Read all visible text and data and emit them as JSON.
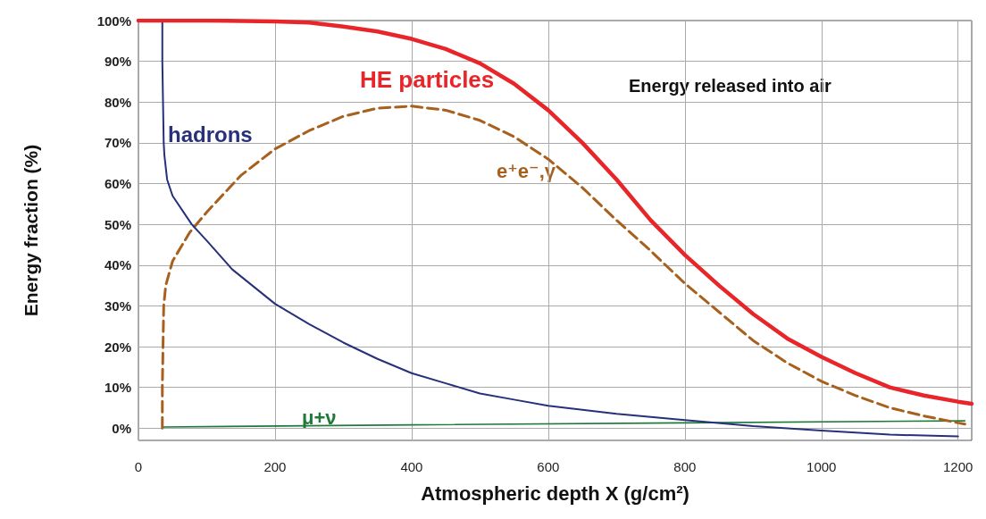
{
  "chart_data": {
    "type": "line",
    "xlabel": "Atmospheric depth X (g/cm²)",
    "ylabel": "Energy fraction (%)",
    "annotations": [
      "Energy released into air"
    ],
    "xlim": [
      0,
      1220
    ],
    "xticks": [
      0,
      200,
      400,
      600,
      800,
      1000,
      1200
    ],
    "ylim": [
      -3,
      100
    ],
    "yticks": [
      {
        "value": 0,
        "label": "0%"
      },
      {
        "value": 10,
        "label": "10%"
      },
      {
        "value": 20,
        "label": "20%"
      },
      {
        "value": 30,
        "label": "30%"
      },
      {
        "value": 40,
        "label": "40%"
      },
      {
        "value": 50,
        "label": "50%"
      },
      {
        "value": 60,
        "label": "60%"
      },
      {
        "value": 70,
        "label": "70%"
      },
      {
        "value": 80,
        "label": "80%"
      },
      {
        "value": 90,
        "label": "90%"
      },
      {
        "value": 100,
        "label": "100%"
      }
    ],
    "grid": true,
    "marker": "none",
    "series": [
      {
        "name": "HE particles",
        "color": "#e8262a",
        "line_style": "solid",
        "x": [
          0,
          100,
          200,
          250,
          300,
          350,
          400,
          450,
          500,
          550,
          600,
          650,
          700,
          750,
          800,
          850,
          900,
          950,
          1000,
          1050,
          1100,
          1150,
          1200,
          1220
        ],
        "values": [
          100,
          100,
          99.8,
          99.5,
          98.5,
          97.3,
          95.5,
          93,
          89.5,
          84.5,
          78,
          70,
          61,
          51,
          42.5,
          35,
          28,
          22,
          17.5,
          13.5,
          10,
          8,
          6.5,
          6
        ]
      },
      {
        "name": "hadrons",
        "color": "#27307a",
        "line_style": "solid",
        "x": [
          35,
          35,
          36,
          37,
          38,
          42,
          50,
          78,
          100,
          137,
          200,
          250,
          300,
          350,
          400,
          450,
          500,
          550,
          600,
          700,
          800,
          900,
          1000,
          1100,
          1200
        ],
        "values": [
          100,
          90,
          80,
          70,
          67,
          61,
          57,
          50,
          46,
          39,
          30.5,
          25.5,
          21,
          17,
          13.5,
          11,
          8.5,
          7,
          5.5,
          3.5,
          2,
          0.5,
          -0.6,
          -1.6,
          -2
        ]
      },
      {
        "name": "e⁺e⁻,γ",
        "color": "#a8601e",
        "line_style": "dashed",
        "x": [
          35,
          35,
          36,
          37,
          40,
          50,
          75,
          100,
          150,
          200,
          250,
          300,
          350,
          400,
          450,
          500,
          550,
          600,
          650,
          700,
          750,
          800,
          850,
          900,
          950,
          1000,
          1050,
          1100,
          1150,
          1200,
          1210
        ],
        "values": [
          0,
          10,
          20,
          30,
          35,
          41,
          48,
          53,
          62,
          68.5,
          73,
          76.5,
          78.5,
          79,
          78,
          75.5,
          71.5,
          66,
          59,
          51,
          43.5,
          35.5,
          28.5,
          21.5,
          16,
          11.5,
          8,
          5,
          3,
          1.3,
          1
        ]
      },
      {
        "name": "μ+ν",
        "color": "#1f7a3a",
        "line_style": "solid",
        "x": [
          35,
          400,
          800,
          1210
        ],
        "values": [
          0.3,
          0.8,
          1.3,
          1.8
        ]
      }
    ]
  }
}
